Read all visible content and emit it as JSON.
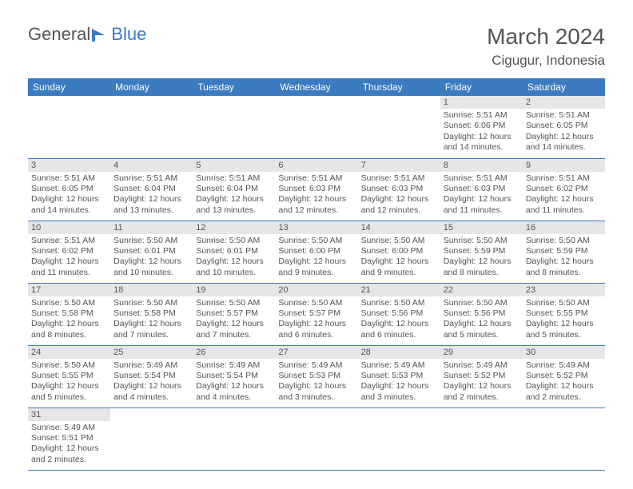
{
  "logo": {
    "text1": "General",
    "text2": "Blue"
  },
  "title": "March 2024",
  "location": "Cigugur, Indonesia",
  "colors": {
    "header_bg": "#3b7bbf",
    "header_fg": "#ffffff",
    "daynum_bg": "#e6e6e6",
    "text": "#545454",
    "row_border": "#3b7bbf"
  },
  "day_headers": [
    "Sunday",
    "Monday",
    "Tuesday",
    "Wednesday",
    "Thursday",
    "Friday",
    "Saturday"
  ],
  "weeks": [
    [
      null,
      null,
      null,
      null,
      null,
      {
        "n": "1",
        "sr": "5:51 AM",
        "ss": "6:06 PM",
        "dl": "12 hours and 14 minutes."
      },
      {
        "n": "2",
        "sr": "5:51 AM",
        "ss": "6:05 PM",
        "dl": "12 hours and 14 minutes."
      }
    ],
    [
      {
        "n": "3",
        "sr": "5:51 AM",
        "ss": "6:05 PM",
        "dl": "12 hours and 14 minutes."
      },
      {
        "n": "4",
        "sr": "5:51 AM",
        "ss": "6:04 PM",
        "dl": "12 hours and 13 minutes."
      },
      {
        "n": "5",
        "sr": "5:51 AM",
        "ss": "6:04 PM",
        "dl": "12 hours and 13 minutes."
      },
      {
        "n": "6",
        "sr": "5:51 AM",
        "ss": "6:03 PM",
        "dl": "12 hours and 12 minutes."
      },
      {
        "n": "7",
        "sr": "5:51 AM",
        "ss": "6:03 PM",
        "dl": "12 hours and 12 minutes."
      },
      {
        "n": "8",
        "sr": "5:51 AM",
        "ss": "6:03 PM",
        "dl": "12 hours and 11 minutes."
      },
      {
        "n": "9",
        "sr": "5:51 AM",
        "ss": "6:02 PM",
        "dl": "12 hours and 11 minutes."
      }
    ],
    [
      {
        "n": "10",
        "sr": "5:51 AM",
        "ss": "6:02 PM",
        "dl": "12 hours and 11 minutes."
      },
      {
        "n": "11",
        "sr": "5:50 AM",
        "ss": "6:01 PM",
        "dl": "12 hours and 10 minutes."
      },
      {
        "n": "12",
        "sr": "5:50 AM",
        "ss": "6:01 PM",
        "dl": "12 hours and 10 minutes."
      },
      {
        "n": "13",
        "sr": "5:50 AM",
        "ss": "6:00 PM",
        "dl": "12 hours and 9 minutes."
      },
      {
        "n": "14",
        "sr": "5:50 AM",
        "ss": "6:00 PM",
        "dl": "12 hours and 9 minutes."
      },
      {
        "n": "15",
        "sr": "5:50 AM",
        "ss": "5:59 PM",
        "dl": "12 hours and 8 minutes."
      },
      {
        "n": "16",
        "sr": "5:50 AM",
        "ss": "5:59 PM",
        "dl": "12 hours and 8 minutes."
      }
    ],
    [
      {
        "n": "17",
        "sr": "5:50 AM",
        "ss": "5:58 PM",
        "dl": "12 hours and 8 minutes."
      },
      {
        "n": "18",
        "sr": "5:50 AM",
        "ss": "5:58 PM",
        "dl": "12 hours and 7 minutes."
      },
      {
        "n": "19",
        "sr": "5:50 AM",
        "ss": "5:57 PM",
        "dl": "12 hours and 7 minutes."
      },
      {
        "n": "20",
        "sr": "5:50 AM",
        "ss": "5:57 PM",
        "dl": "12 hours and 6 minutes."
      },
      {
        "n": "21",
        "sr": "5:50 AM",
        "ss": "5:56 PM",
        "dl": "12 hours and 6 minutes."
      },
      {
        "n": "22",
        "sr": "5:50 AM",
        "ss": "5:56 PM",
        "dl": "12 hours and 5 minutes."
      },
      {
        "n": "23",
        "sr": "5:50 AM",
        "ss": "5:55 PM",
        "dl": "12 hours and 5 minutes."
      }
    ],
    [
      {
        "n": "24",
        "sr": "5:50 AM",
        "ss": "5:55 PM",
        "dl": "12 hours and 5 minutes."
      },
      {
        "n": "25",
        "sr": "5:49 AM",
        "ss": "5:54 PM",
        "dl": "12 hours and 4 minutes."
      },
      {
        "n": "26",
        "sr": "5:49 AM",
        "ss": "5:54 PM",
        "dl": "12 hours and 4 minutes."
      },
      {
        "n": "27",
        "sr": "5:49 AM",
        "ss": "5:53 PM",
        "dl": "12 hours and 3 minutes."
      },
      {
        "n": "28",
        "sr": "5:49 AM",
        "ss": "5:53 PM",
        "dl": "12 hours and 3 minutes."
      },
      {
        "n": "29",
        "sr": "5:49 AM",
        "ss": "5:52 PM",
        "dl": "12 hours and 2 minutes."
      },
      {
        "n": "30",
        "sr": "5:49 AM",
        "ss": "5:52 PM",
        "dl": "12 hours and 2 minutes."
      }
    ],
    [
      {
        "n": "31",
        "sr": "5:49 AM",
        "ss": "5:51 PM",
        "dl": "12 hours and 2 minutes."
      },
      null,
      null,
      null,
      null,
      null,
      null
    ]
  ],
  "labels": {
    "sunrise": "Sunrise: ",
    "sunset": "Sunset: ",
    "daylight": "Daylight: "
  }
}
